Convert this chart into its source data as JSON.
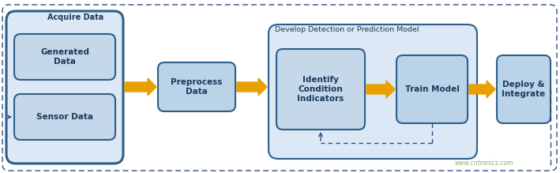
{
  "fig_width": 7.09,
  "fig_height": 2.19,
  "dpi": 100,
  "bg_color": "#ffffff",
  "box_fill_light": "#c5d8ea",
  "box_fill_medium": "#bad3e8",
  "box_fill_develop": "#dce8f5",
  "box_stroke_blue": "#2e5f8a",
  "box_stroke_dark": "#1f4060",
  "arrow_color": "#e8a000",
  "dashed_color": "#2e5080",
  "text_color": "#1a3a5c",
  "watermark_color": "#7db86a",
  "watermark_text": "www.cntronics.com",
  "acquire_label": "Acquire Data",
  "generated_label": "Generated\nData",
  "sensor_label": "Sensor Data",
  "preprocess_label": "Preprocess\nData",
  "develop_label": "Develop Detection or Prediction Model",
  "identify_label": "Identify\nCondition\nIndicators",
  "train_label": "Train Model",
  "deploy_label": "Deploy &\nIntegrate",
  "font_size_title": 7.0,
  "font_size_body": 7.5,
  "font_size_develop": 6.8,
  "font_size_watermark": 5.5,
  "font_weight": "bold"
}
